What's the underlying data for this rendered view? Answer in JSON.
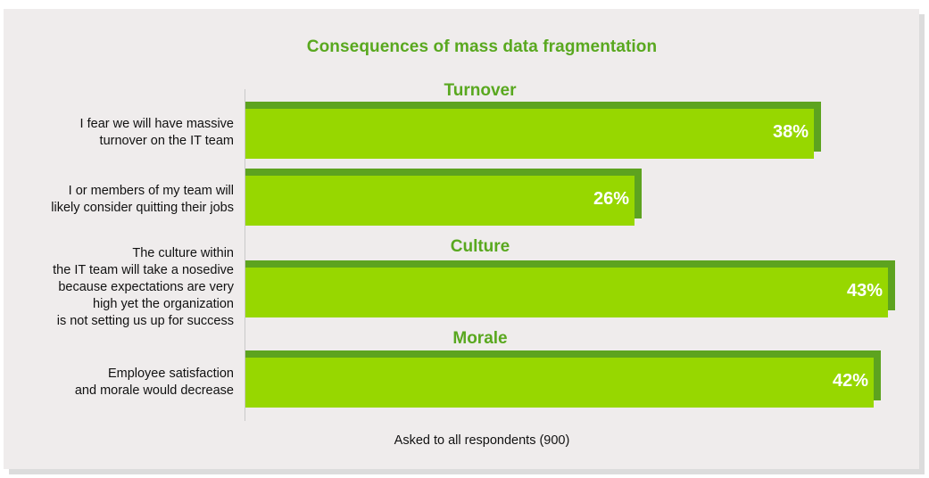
{
  "chart_data": {
    "type": "bar",
    "orientation": "horizontal",
    "title": "Consequences of mass data fragmentation",
    "groups": [
      {
        "label": "Turnover"
      },
      {
        "label": "Culture"
      },
      {
        "label": "Morale"
      }
    ],
    "categories": [
      "I fear we will have massive\nturnover on the IT team",
      "I or members of my team will\nlikely consider quitting their jobs",
      "The culture within\nthe IT team will take a nosedive\nbecause expectations are very\nhigh yet the organization\nis not setting us up for success",
      "Employee satisfaction\nand morale would decrease"
    ],
    "values": [
      38,
      26,
      43,
      42
    ],
    "value_labels": [
      "38%",
      "26%",
      "43%",
      "42%"
    ],
    "footnote": "Asked to all respondents (900)",
    "colors": {
      "bar": "#97d700",
      "bar_shadow": "#5da31f",
      "title": "#59a81f",
      "background": "#efecec"
    }
  }
}
